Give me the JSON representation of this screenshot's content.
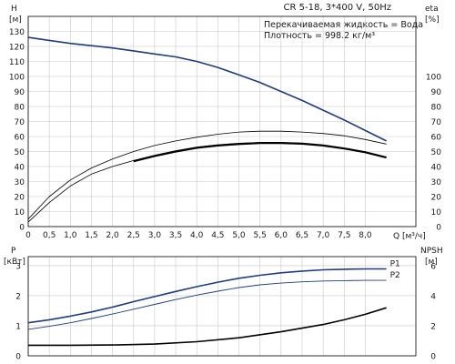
{
  "chart_data": [
    {
      "type": "line",
      "title": "CR 5-18, 3*400 V, 50Hz",
      "annotations": [
        "Перекачиваемая жидкость = Вода",
        "Плотность = 998.2 кг/м³"
      ],
      "xlabel": "Q [м³/ч]",
      "x_ticks": [
        "0",
        "0,5",
        "1,0",
        "1,5",
        "2,0",
        "2,5",
        "3,0",
        "3,5",
        "4,0",
        "4,5",
        "5,0",
        "5,5",
        "6,0",
        "6,5",
        "7,0",
        "7,5",
        "8,0"
      ],
      "xlim": [
        0,
        9.2
      ],
      "left_axis": {
        "label": "H",
        "unit": "[м]",
        "ticks": [
          "0",
          "10",
          "20",
          "30",
          "40",
          "50",
          "60",
          "70",
          "80",
          "90",
          "100",
          "110",
          "120",
          "130"
        ],
        "ylim": [
          0,
          140
        ]
      },
      "right_axis": {
        "label": "eta",
        "unit": "[%]",
        "ticks": [
          "0",
          "10",
          "20",
          "30",
          "40",
          "50",
          "60",
          "70",
          "80",
          "90",
          "100"
        ],
        "ylim": [
          0,
          140
        ]
      },
      "grid": true,
      "colors": {
        "head": "#1f3d78",
        "efficiency": "#000000"
      },
      "series": [
        {
          "role": "head",
          "axis": "left",
          "points": [
            [
              0,
              126
            ],
            [
              0.5,
              124
            ],
            [
              1,
              122
            ],
            [
              1.5,
              120.5
            ],
            [
              2,
              119
            ],
            [
              2.5,
              117
            ],
            [
              3,
              115
            ],
            [
              3.5,
              113
            ],
            [
              4,
              110
            ],
            [
              4.5,
              106
            ],
            [
              5,
              101
            ],
            [
              5.5,
              96
            ],
            [
              6,
              90
            ],
            [
              6.5,
              84
            ],
            [
              7,
              77.5
            ],
            [
              7.5,
              71
            ],
            [
              8,
              64
            ],
            [
              8.5,
              57
            ]
          ]
        },
        {
          "role": "efficiency-upper",
          "axis": "right",
          "points": [
            [
              0,
              5
            ],
            [
              0.5,
              20
            ],
            [
              1,
              31
            ],
            [
              1.5,
              39
            ],
            [
              2,
              45
            ],
            [
              2.5,
              50
            ],
            [
              3,
              54
            ],
            [
              3.5,
              57
            ],
            [
              4,
              59.5
            ],
            [
              4.5,
              61.5
            ],
            [
              5,
              63
            ],
            [
              5.5,
              63.5
            ],
            [
              6,
              63.5
            ],
            [
              6.5,
              63
            ],
            [
              7,
              62
            ],
            [
              7.5,
              60.5
            ],
            [
              8,
              58
            ],
            [
              8.5,
              55
            ]
          ]
        },
        {
          "role": "efficiency-lower",
          "axis": "right",
          "points": [
            [
              0,
              3
            ],
            [
              0.5,
              16
            ],
            [
              1,
              27
            ],
            [
              1.5,
              35
            ],
            [
              2,
              40
            ],
            [
              2.5,
              44
            ],
            [
              3,
              47.5
            ],
            [
              3.5,
              50.5
            ],
            [
              4,
              53
            ],
            [
              4.5,
              54.5
            ],
            [
              5,
              55.5
            ],
            [
              5.5,
              56
            ],
            [
              6,
              56
            ],
            [
              6.5,
              55.5
            ],
            [
              7,
              54
            ],
            [
              7.5,
              52
            ],
            [
              8,
              49.5
            ],
            [
              8.5,
              46
            ]
          ]
        },
        {
          "role": "efficiency-duty",
          "axis": "right",
          "points": [
            [
              2.5,
              43.5
            ],
            [
              3,
              47
            ],
            [
              3.5,
              50
            ],
            [
              4,
              52.5
            ],
            [
              4.5,
              54
            ],
            [
              5,
              55
            ],
            [
              5.5,
              55.7
            ],
            [
              6,
              55.7
            ],
            [
              6.5,
              55.2
            ],
            [
              7,
              54
            ],
            [
              7.5,
              52
            ],
            [
              8,
              49.5
            ],
            [
              8.5,
              46
            ]
          ]
        }
      ]
    },
    {
      "type": "line",
      "xlim": [
        0,
        9.2
      ],
      "left_axis": {
        "label": "P",
        "unit": "[кВт]",
        "ticks": [
          "0",
          "1",
          "2",
          "3"
        ],
        "ylim": [
          0,
          3.3
        ]
      },
      "right_axis": {
        "label": "NPSH",
        "unit": "[м]",
        "ticks": [
          "0",
          "2",
          "4",
          "6"
        ],
        "ylim": [
          0,
          6.6
        ]
      },
      "grid": true,
      "colors": {
        "power": "#1f3d78",
        "npsh": "#000000"
      },
      "series": [
        {
          "name": "P1",
          "axis": "left",
          "points": [
            [
              0,
              1.1
            ],
            [
              0.5,
              1.2
            ],
            [
              1,
              1.32
            ],
            [
              1.5,
              1.46
            ],
            [
              2,
              1.62
            ],
            [
              2.5,
              1.8
            ],
            [
              3,
              1.97
            ],
            [
              3.5,
              2.14
            ],
            [
              4,
              2.3
            ],
            [
              4.5,
              2.45
            ],
            [
              5,
              2.58
            ],
            [
              5.5,
              2.68
            ],
            [
              6,
              2.76
            ],
            [
              6.5,
              2.82
            ],
            [
              7,
              2.86
            ],
            [
              7.5,
              2.88
            ],
            [
              8,
              2.89
            ],
            [
              8.5,
              2.89
            ]
          ]
        },
        {
          "name": "P2",
          "axis": "left",
          "points": [
            [
              0,
              0.88
            ],
            [
              0.5,
              0.98
            ],
            [
              1,
              1.1
            ],
            [
              1.5,
              1.24
            ],
            [
              2,
              1.39
            ],
            [
              2.5,
              1.55
            ],
            [
              3,
              1.71
            ],
            [
              3.5,
              1.87
            ],
            [
              4,
              2.02
            ],
            [
              4.5,
              2.15
            ],
            [
              5,
              2.27
            ],
            [
              5.5,
              2.36
            ],
            [
              6,
              2.42
            ],
            [
              6.5,
              2.46
            ],
            [
              7,
              2.49
            ],
            [
              7.5,
              2.5
            ],
            [
              8,
              2.51
            ],
            [
              8.5,
              2.51
            ]
          ]
        },
        {
          "role": "npsh",
          "axis": "right",
          "points": [
            [
              0,
              0.7
            ],
            [
              1,
              0.7
            ],
            [
              2,
              0.72
            ],
            [
              3,
              0.78
            ],
            [
              4,
              0.94
            ],
            [
              5,
              1.2
            ],
            [
              6,
              1.6
            ],
            [
              7,
              2.08
            ],
            [
              7.5,
              2.4
            ],
            [
              8,
              2.76
            ],
            [
              8.5,
              3.2
            ]
          ]
        }
      ]
    }
  ]
}
